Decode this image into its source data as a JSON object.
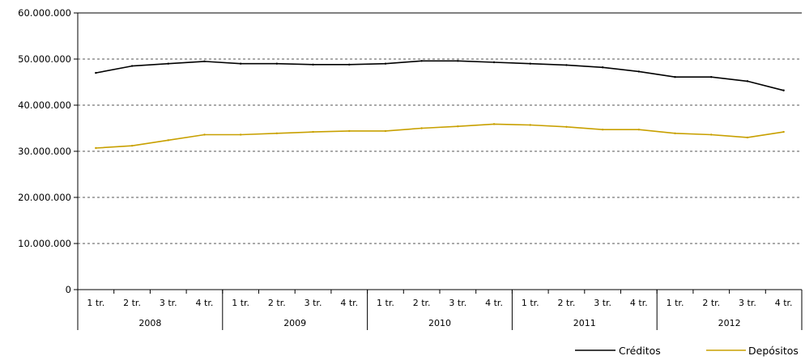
{
  "chart_data": {
    "type": "line",
    "quarter_labels": [
      "1 tr.",
      "2 tr.",
      "3 tr.",
      "4 tr."
    ],
    "year_labels": [
      "2008",
      "2009",
      "2010",
      "2011",
      "2012"
    ],
    "ylim": [
      0,
      60000000
    ],
    "yticks": [
      0,
      10000000,
      20000000,
      30000000,
      40000000,
      50000000,
      60000000
    ],
    "ytick_labels": [
      "0",
      "10.000.000",
      "20.000.000",
      "30.000.000",
      "40.000.000",
      "50.000.000",
      "60.000.000"
    ],
    "grid": "horizontal dashed",
    "legend_position": "bottom-right",
    "series": [
      {
        "name": "Créditos",
        "color": "#000000",
        "values": [
          47000000,
          48500000,
          49000000,
          49500000,
          49000000,
          49000000,
          48800000,
          48800000,
          49000000,
          49600000,
          49600000,
          49300000,
          49000000,
          48700000,
          48200000,
          47300000,
          46100000,
          46100000,
          45200000,
          43200000
        ]
      },
      {
        "name": "Depósitos",
        "color": "#C8A000",
        "values": [
          30700000,
          31200000,
          32400000,
          33600000,
          33600000,
          33900000,
          34200000,
          34400000,
          34400000,
          35000000,
          35400000,
          35900000,
          35700000,
          35300000,
          34700000,
          34700000,
          33900000,
          33600000,
          33000000,
          34200000
        ]
      }
    ]
  }
}
